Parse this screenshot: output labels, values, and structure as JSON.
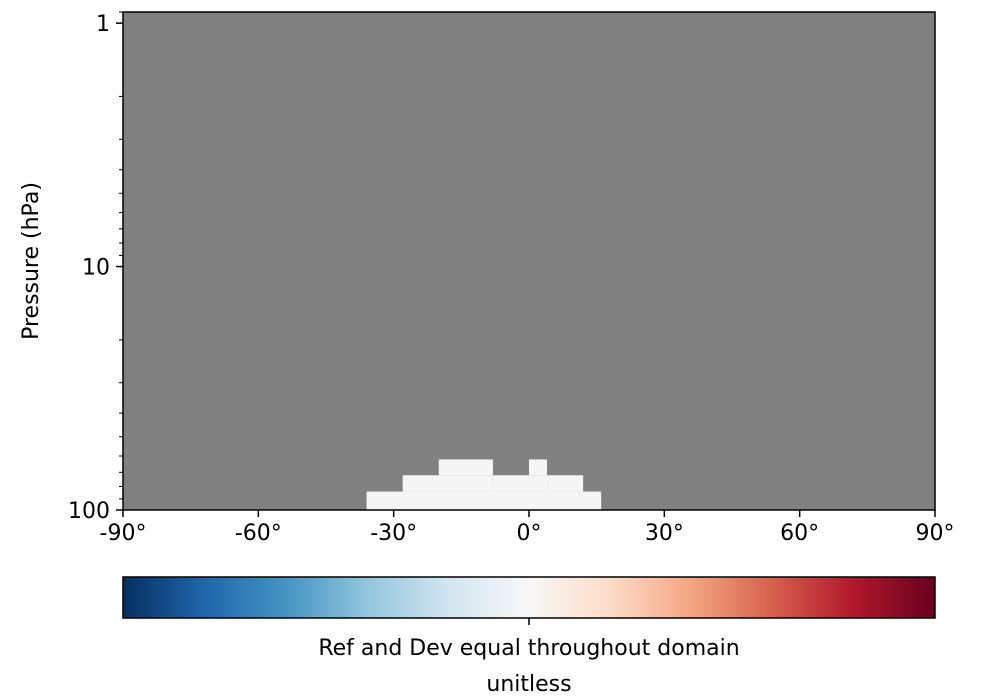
{
  "chart_data": {
    "type": "heatmap",
    "title": "",
    "xlabel": "",
    "ylabel": "Pressure (hPa)",
    "x_scale": "linear",
    "y_scale": "log",
    "y_inverted": true,
    "xlim": [
      -90,
      90
    ],
    "ylim": [
      100,
      0.9
    ],
    "x_ticks": [
      -90,
      -60,
      -30,
      0,
      30,
      60,
      90
    ],
    "x_tick_labels": [
      "-90°",
      "-60°",
      "-30°",
      "0°",
      "30°",
      "60°",
      "90°"
    ],
    "y_ticks": [
      1,
      10,
      100
    ],
    "y_tick_labels": [
      "1",
      "10",
      "100"
    ],
    "background_color": "#808080",
    "background_meaning": "masked / no data",
    "cells": [
      {
        "x": [
          -36,
          16
        ],
        "y": [
          100,
          84
        ],
        "value": 0
      },
      {
        "x": [
          -28,
          -8
        ],
        "y": [
          84,
          72
        ],
        "value": 0
      },
      {
        "x": [
          -8,
          0
        ],
        "y": [
          84,
          72
        ],
        "value": 0
      },
      {
        "x": [
          0,
          4
        ],
        "y": [
          84,
          72
        ],
        "value": 0
      },
      {
        "x": [
          4,
          12
        ],
        "y": [
          84,
          72
        ],
        "value": 0
      },
      {
        "x": [
          -20,
          -8
        ],
        "y": [
          72,
          62
        ],
        "value": 0
      },
      {
        "x": [
          0,
          4
        ],
        "y": [
          72,
          62
        ],
        "value": 0
      }
    ],
    "cell_color": "#f5f5f5",
    "colorbar": {
      "colormap": "RdBu_r",
      "colors": [
        "#053061",
        "#2166ac",
        "#4393c3",
        "#92c5de",
        "#d1e5f0",
        "#f7f7f7",
        "#fddbc7",
        "#f4a582",
        "#d6604d",
        "#b2182b",
        "#67001f"
      ],
      "center_tick": true,
      "label_lines": [
        "Ref and Dev equal throughout domain",
        "unitless"
      ]
    }
  }
}
